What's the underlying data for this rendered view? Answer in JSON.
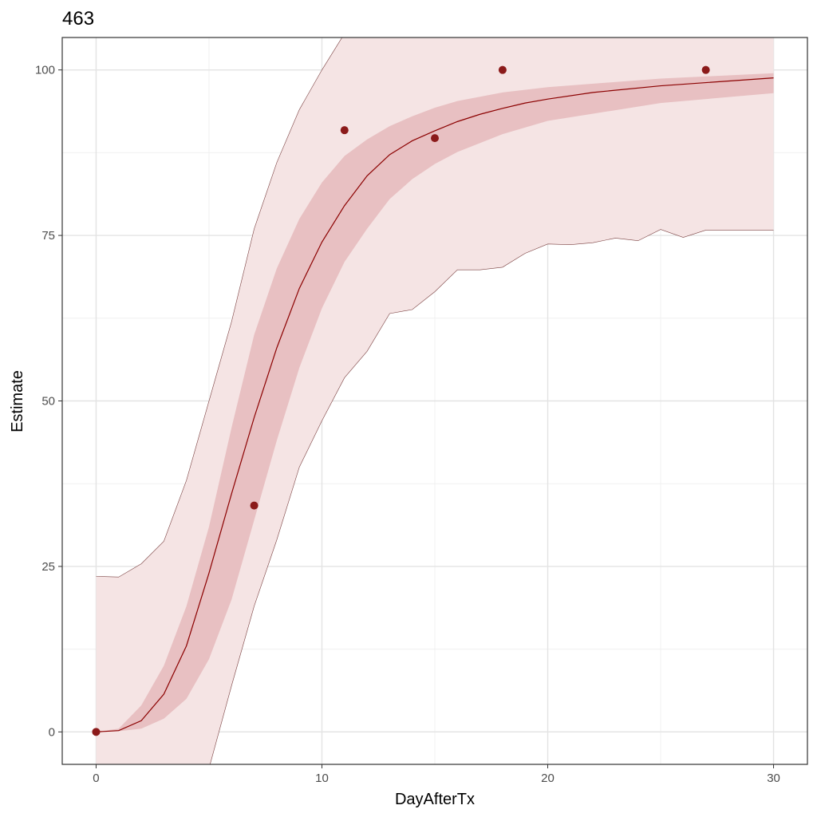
{
  "chart_data": {
    "type": "line",
    "title": "463",
    "xlabel": "DayAfterTx",
    "ylabel": "Estimate",
    "xlim": [
      -1.5,
      31.5
    ],
    "ylim": [
      -4.9,
      104.9
    ],
    "xticks": [
      0,
      10,
      20,
      30
    ],
    "yticks": [
      0,
      25,
      50,
      75,
      100
    ],
    "grid": true,
    "colors": {
      "line": "#8b0000",
      "point": "#8b1a1a",
      "inner_band": "#e8c0c2",
      "outer_band": "#f5e4e4",
      "outer_edge": "#7a4040"
    },
    "points": {
      "x": [
        0,
        7,
        11,
        15,
        18,
        27
      ],
      "y": [
        0,
        34.2,
        90.9,
        89.7,
        100,
        100
      ]
    },
    "median": {
      "x": [
        0,
        1,
        2,
        3,
        4,
        5,
        6,
        7,
        8,
        9,
        10,
        11,
        12,
        13,
        14,
        15,
        16,
        17,
        18,
        19,
        20,
        22,
        25,
        30
      ],
      "y": [
        0,
        0.2,
        1.7,
        5.7,
        13,
        24,
        36,
        47.5,
        58,
        67,
        74,
        79.5,
        84,
        87.2,
        89.3,
        90.8,
        92.2,
        93.3,
        94.2,
        95,
        95.6,
        96.6,
        97.6,
        98.8
      ]
    },
    "inner_band": {
      "x": [
        0,
        1,
        2,
        3,
        4,
        5,
        6,
        7,
        8,
        9,
        10,
        11,
        12,
        13,
        14,
        15,
        16,
        18,
        20,
        25,
        30
      ],
      "lower": [
        0,
        0.1,
        0.5,
        2,
        5,
        11,
        20,
        32,
        44,
        55,
        64,
        71,
        76,
        80.5,
        83.5,
        85.8,
        87.6,
        90.3,
        92.3,
        95,
        96.5
      ],
      "upper": [
        0,
        0.5,
        4,
        10,
        19,
        31,
        46,
        60,
        70,
        77.5,
        83,
        87,
        89.5,
        91.5,
        93,
        94.3,
        95.3,
        96.6,
        97.4,
        98.7,
        99.5
      ]
    },
    "outer_band": {
      "x": [
        0,
        1,
        2,
        3,
        4,
        5,
        6,
        7,
        8,
        9,
        10,
        11,
        12,
        13,
        14,
        15,
        16,
        17,
        18,
        19,
        20,
        21,
        22,
        23,
        24,
        25,
        26,
        27,
        28,
        29,
        30
      ],
      "lower": [
        -10,
        -10,
        -10,
        -10,
        -10,
        -5.5,
        7,
        19,
        29,
        40,
        47,
        53.5,
        57.5,
        63.2,
        63.8,
        66.5,
        69.8,
        69.8,
        70.2,
        72.3,
        73.7,
        73.6,
        73.9,
        74.6,
        74.2,
        75.9,
        74.7,
        75.8,
        75.8,
        75.8,
        75.8
      ],
      "upper": [
        23.5,
        23.4,
        25.4,
        28.8,
        38,
        50,
        62,
        76,
        86,
        94,
        100,
        105.5,
        110,
        110,
        110,
        110,
        110,
        110,
        110,
        110,
        110,
        110,
        110,
        110,
        110,
        110,
        110,
        110,
        110,
        110,
        110
      ]
    }
  }
}
